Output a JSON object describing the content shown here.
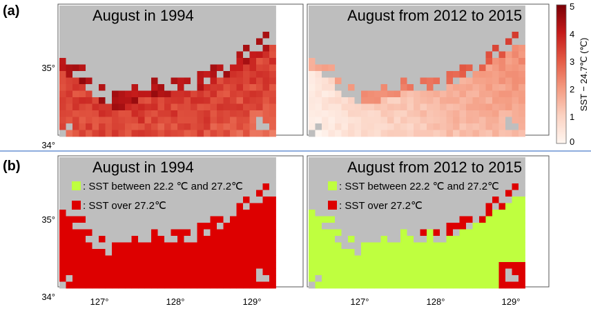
{
  "rows": [
    {
      "label": "(a)",
      "panels": [
        {
          "title": "August in 1994",
          "mode": "anomaly",
          "scenario": "1994"
        },
        {
          "title": "August from 2012 to 2015",
          "mode": "anomaly",
          "scenario": "recent"
        }
      ]
    },
    {
      "label": "(b)",
      "panels": [
        {
          "title": "August in 1994",
          "mode": "class",
          "scenario": "1994"
        },
        {
          "title": "August from 2012 to 2015",
          "mode": "class",
          "scenario": "recent"
        }
      ]
    }
  ],
  "colorbar": {
    "label": "SST − 24.7℃ (℃)",
    "ticks": [
      "5",
      "4",
      "3",
      "2",
      "1",
      "0"
    ],
    "range": [
      0,
      5
    ]
  },
  "legend": [
    {
      "text": ": SST between 22.2 ℃ and 27.2℃",
      "color": "#bfff3f"
    },
    {
      "text": ": SST over 27.2℃",
      "color": "#dd0000"
    }
  ],
  "axes": {
    "x_ticks": [
      "127°",
      "128°",
      "129°"
    ],
    "y_ticks": [
      "35°",
      "34°"
    ],
    "lon_range": [
      126.35,
      129.5
    ],
    "lat_range": [
      34.0,
      35.7
    ]
  },
  "colors": {
    "land": "#bebebe",
    "sea_warm": "#dd0000",
    "sea_mild": "#bfff3f",
    "divider": "#4a7cc9"
  }
}
